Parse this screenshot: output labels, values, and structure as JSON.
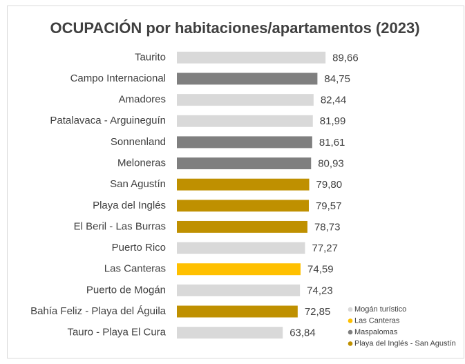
{
  "chart_data": {
    "type": "bar",
    "orientation": "horizontal",
    "title": "OCUPACIÓN por habitaciones/apartamentos (2023)",
    "categories": [
      "Taurito",
      "Campo Internacional",
      "Amadores",
      "Patalavaca - Arguineguín",
      "Sonnenland",
      "Meloneras",
      "San Agustín",
      "Playa del Inglés",
      "El Beril - Las Burras",
      "Puerto Rico",
      "Las Canteras",
      "Puerto de Mogán",
      "Bahía Feliz - Playa del Águila",
      "Tauro - Playa El Cura"
    ],
    "series": [
      {
        "name": "Mogán turístico",
        "color": "#d9d9d9",
        "values": [
          89.66,
          null,
          82.44,
          81.99,
          null,
          null,
          null,
          null,
          null,
          77.27,
          null,
          74.23,
          null,
          63.84
        ],
        "value_labels": [
          "89,66",
          null,
          "82,44",
          "81,99",
          null,
          null,
          null,
          null,
          null,
          "77,27",
          null,
          "74,23",
          null,
          "63,84"
        ]
      },
      {
        "name": "Las Canteras",
        "color": "#ffc000",
        "values": [
          null,
          null,
          null,
          null,
          null,
          null,
          null,
          null,
          null,
          null,
          74.59,
          null,
          null,
          null
        ],
        "value_labels": [
          null,
          null,
          null,
          null,
          null,
          null,
          null,
          null,
          null,
          null,
          "74,59",
          null,
          null,
          null
        ]
      },
      {
        "name": "Maspalomas",
        "color": "#7f7f7f",
        "values": [
          null,
          84.75,
          null,
          null,
          81.61,
          80.93,
          null,
          null,
          null,
          null,
          null,
          null,
          null,
          null
        ],
        "value_labels": [
          null,
          "84,75",
          null,
          null,
          "81,61",
          "80,93",
          null,
          null,
          null,
          null,
          null,
          null,
          null,
          null
        ]
      },
      {
        "name": "Playa del Inglés - San Agustín",
        "color": "#bf9000",
        "values": [
          null,
          null,
          null,
          null,
          null,
          null,
          79.8,
          79.57,
          78.73,
          null,
          null,
          null,
          72.85,
          null
        ],
        "value_labels": [
          null,
          null,
          null,
          null,
          null,
          null,
          "79,80",
          "79,57",
          "78,73",
          null,
          null,
          null,
          "72,85",
          null
        ]
      }
    ],
    "xlim": [
      0,
      100
    ],
    "legend": "bottom-right"
  }
}
